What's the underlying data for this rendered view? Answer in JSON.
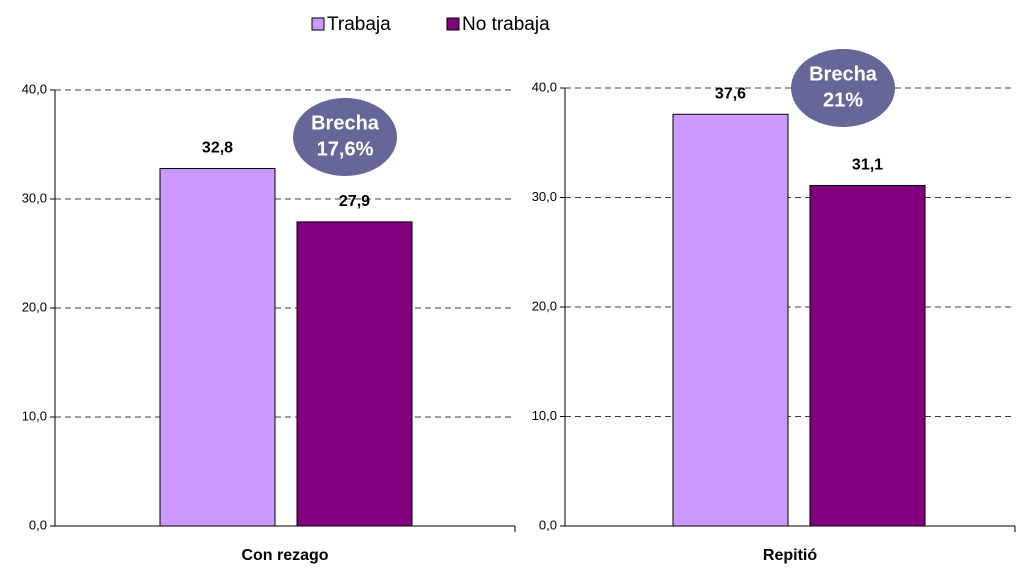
{
  "chart_data": [
    {
      "type": "bar",
      "categories": [
        "Con rezago"
      ],
      "series": [
        {
          "name": "Trabaja",
          "color": "#cc99ff",
          "values": [
            32.8
          ],
          "value_labels": [
            "32,8"
          ]
        },
        {
          "name": "No trabaja",
          "color": "#800080",
          "values": [
            27.9
          ],
          "value_labels": [
            "27,9"
          ]
        }
      ],
      "ylim": [
        0,
        40
      ],
      "yticks": [
        {
          "value": 0,
          "label": "0,0"
        },
        {
          "value": 10,
          "label": "10,0"
        },
        {
          "value": 20,
          "label": "20,0"
        },
        {
          "value": 30,
          "label": "30,0"
        },
        {
          "value": 40,
          "label": "40,0"
        }
      ],
      "grid": true,
      "annotation": [
        "Brecha",
        "17,6%"
      ]
    },
    {
      "type": "bar",
      "categories": [
        "Repitió"
      ],
      "series": [
        {
          "name": "Trabaja",
          "color": "#cc99ff",
          "values": [
            37.6
          ],
          "value_labels": [
            "37,6"
          ]
        },
        {
          "name": "No trabaja",
          "color": "#800080",
          "values": [
            31.1
          ],
          "value_labels": [
            "31,1"
          ]
        }
      ],
      "ylim": [
        0,
        40
      ],
      "yticks": [
        {
          "value": 0,
          "label": "0,0"
        },
        {
          "value": 10,
          "label": "10,0"
        },
        {
          "value": 20,
          "label": "20,0"
        },
        {
          "value": 30,
          "label": "30,0"
        },
        {
          "value": 40,
          "label": "40,0"
        }
      ],
      "grid": true,
      "annotation": [
        "Brecha",
        "21%"
      ]
    }
  ]
}
